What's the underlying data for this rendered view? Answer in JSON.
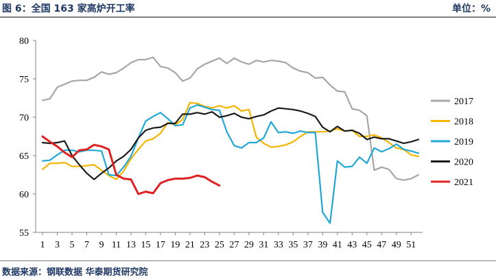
{
  "header": {
    "title": "图 6：全国 163 家高炉开工率",
    "unit": "单位：%"
  },
  "footer": {
    "source": "数据来源：钢联数据 华泰期货研究院"
  },
  "chart_data": {
    "type": "line",
    "title": "全国 163 家高炉开工率",
    "x_ticks": [
      1,
      3,
      5,
      7,
      9,
      11,
      13,
      15,
      17,
      19,
      21,
      23,
      25,
      27,
      29,
      31,
      33,
      35,
      37,
      39,
      41,
      43,
      45,
      47,
      49,
      51
    ],
    "xlim": [
      1,
      52
    ],
    "ylim": [
      55,
      80
    ],
    "y_ticks": [
      55,
      60,
      65,
      70,
      75,
      80
    ],
    "grid": false,
    "legend_position": "right",
    "series": [
      {
        "name": "2017",
        "color": "#a6a6a6",
        "values": [
          72.2,
          72.4,
          73.9,
          74.3,
          74.7,
          74.8,
          74.8,
          75.2,
          75.9,
          75.6,
          75.8,
          76.4,
          77.1,
          77.5,
          77.5,
          77.8,
          76.6,
          76.4,
          75.8,
          74.7,
          75.1,
          76.3,
          76.9,
          77.3,
          77.7,
          77.0,
          77.7,
          77.2,
          76.9,
          77.4,
          77.2,
          77.4,
          77.3,
          77.1,
          76.4,
          76.0,
          75.8,
          75.1,
          75.2,
          74.2,
          73.4,
          73.3,
          71.1,
          70.9,
          70.2,
          63.1,
          63.5,
          63.2,
          62.0,
          61.8,
          62.0,
          62.5
        ]
      },
      {
        "name": "2018",
        "color": "#f4b400",
        "values": [
          63.2,
          64.0,
          64.0,
          64.1,
          63.6,
          63.6,
          63.7,
          63.8,
          63.1,
          62.4,
          61.9,
          63.0,
          64.6,
          65.8,
          66.9,
          67.2,
          67.9,
          69.3,
          69.0,
          69.7,
          71.9,
          71.8,
          71.4,
          71.2,
          71.5,
          71.2,
          71.5,
          70.8,
          71.0,
          67.4,
          66.6,
          66.1,
          66.2,
          66.4,
          66.8,
          67.5,
          68.1,
          68.1,
          68.1,
          68.2,
          68.5,
          68.2,
          68.3,
          67.5,
          67.5,
          67.7,
          67.3,
          66.7,
          66.0,
          65.8,
          65.1,
          64.9
        ]
      },
      {
        "name": "2019",
        "color": "#1fa7d8",
        "values": [
          64.3,
          64.4,
          65.1,
          65.7,
          65.7,
          65.5,
          65.7,
          65.7,
          65.6,
          62.5,
          62.4,
          63.5,
          64.9,
          67.3,
          69.5,
          70.1,
          70.6,
          69.8,
          68.9,
          69.0,
          71.2,
          71.6,
          71.3,
          71.0,
          70.9,
          68.1,
          66.3,
          66.0,
          66.7,
          66.7,
          67.3,
          69.4,
          68.0,
          68.1,
          67.9,
          68.2,
          68.0,
          68.0,
          57.6,
          56.2,
          64.3,
          63.5,
          63.6,
          64.8,
          64.0,
          66.0,
          65.5,
          65.9,
          66.5,
          65.8,
          65.6,
          65.3
        ]
      },
      {
        "name": "2020",
        "color": "#1a1a1a",
        "values": [
          66.7,
          66.6,
          66.7,
          66.9,
          65.0,
          63.8,
          62.7,
          61.9,
          62.7,
          63.4,
          64.3,
          64.9,
          65.8,
          67.3,
          68.3,
          68.6,
          68.7,
          69.2,
          69.2,
          70.4,
          70.4,
          70.6,
          70.4,
          70.7,
          70.0,
          70.2,
          70.5,
          70.0,
          69.8,
          70.1,
          70.3,
          70.8,
          71.2,
          71.1,
          71.0,
          70.8,
          70.5,
          70.1,
          68.7,
          68.1,
          68.8,
          68.2,
          68.3,
          67.9,
          67.1,
          67.4,
          67.2,
          67.2,
          66.9,
          66.6,
          66.8,
          67.1
        ]
      },
      {
        "name": "2021",
        "color": "#e02020",
        "values": [
          67.5,
          66.8,
          66.2,
          65.4,
          64.8,
          65.7,
          65.8,
          66.4,
          66.2,
          65.8,
          62.5,
          62.0,
          61.9,
          60.0,
          60.3,
          60.1,
          61.4,
          61.8,
          62.0,
          62.0,
          62.1,
          62.4,
          62.2,
          61.6,
          61.1
        ]
      }
    ]
  }
}
